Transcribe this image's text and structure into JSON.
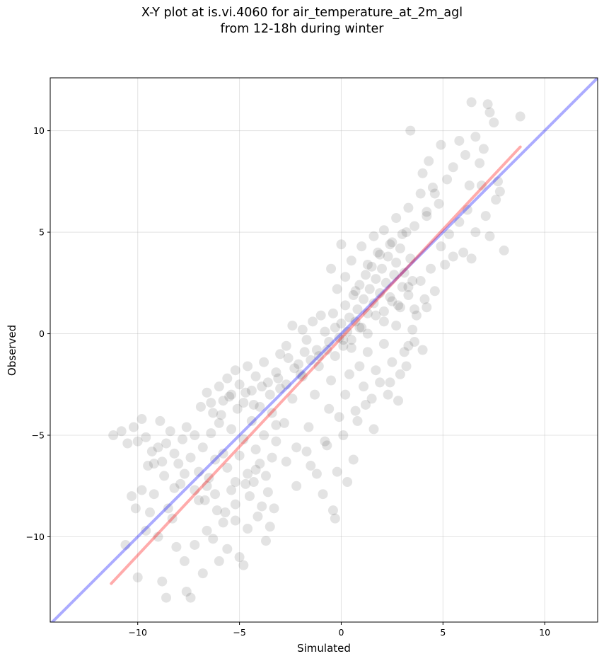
{
  "chart_data": {
    "type": "scatter",
    "title": "X-Y plot at is.vi.4060 for air_temperature_at_2m_agl",
    "subtitle": "from 12-18h during winter",
    "xlabel": "Simulated",
    "ylabel": "Observed",
    "xlim": [
      -14.3,
      12.6
    ],
    "ylim": [
      -14.2,
      12.6
    ],
    "xticks": [
      -10,
      -5,
      0,
      5,
      10
    ],
    "yticks": [
      -10,
      -5,
      0,
      5,
      10
    ],
    "xtick_labels": [
      "−10",
      "−5",
      "0",
      "5",
      "10"
    ],
    "ytick_labels": [
      "−10",
      "−5",
      "0",
      "5",
      "10"
    ],
    "grid": true,
    "colors": {
      "points": "#000000",
      "identity_line": "#0000ff",
      "fit_line": "#ff0000"
    },
    "identity_line": {
      "x": [
        -14.3,
        12.6
      ],
      "y": [
        -14.3,
        12.6
      ]
    },
    "fit_line": {
      "x": [
        -11.3,
        8.8
      ],
      "y": [
        -12.3,
        9.2
      ]
    },
    "points": [
      [
        -11.2,
        -5.0
      ],
      [
        -10.8,
        -4.8
      ],
      [
        -10.5,
        -5.4
      ],
      [
        -10.2,
        -4.6
      ],
      [
        -10.0,
        -5.3
      ],
      [
        -9.8,
        -4.2
      ],
      [
        -9.6,
        -5.1
      ],
      [
        -9.5,
        -6.5
      ],
      [
        -9.3,
        -5.8
      ],
      [
        -9.0,
        -5.6
      ],
      [
        -8.9,
        -4.3
      ],
      [
        -8.8,
        -6.3
      ],
      [
        -8.6,
        -5.4
      ],
      [
        -8.4,
        -4.8
      ],
      [
        -8.2,
        -5.9
      ],
      [
        -8.0,
        -6.4
      ],
      [
        -7.8,
        -5.2
      ],
      [
        -7.6,
        -4.6
      ],
      [
        -7.4,
        -6.1
      ],
      [
        -7.2,
        -5.0
      ],
      [
        -10.6,
        -10.4
      ],
      [
        -10.3,
        -8.0
      ],
      [
        -10.1,
        -8.6
      ],
      [
        -10.0,
        -12.0
      ],
      [
        -9.8,
        -7.7
      ],
      [
        -9.6,
        -9.7
      ],
      [
        -9.4,
        -8.8
      ],
      [
        -9.2,
        -7.9
      ],
      [
        -9.0,
        -10.0
      ],
      [
        -8.8,
        -12.2
      ],
      [
        -8.6,
        -13.0
      ],
      [
        -8.5,
        -8.6
      ],
      [
        -8.3,
        -9.1
      ],
      [
        -8.1,
        -10.5
      ],
      [
        -7.9,
        -7.4
      ],
      [
        -7.7,
        -11.2
      ],
      [
        -7.6,
        -12.7
      ],
      [
        -7.4,
        -13.0
      ],
      [
        -7.2,
        -10.4
      ],
      [
        -7.0,
        -8.2
      ],
      [
        -6.8,
        -11.8
      ],
      [
        -6.6,
        -9.7
      ],
      [
        -6.5,
        -7.1
      ],
      [
        -6.3,
        -10.1
      ],
      [
        -6.1,
        -8.7
      ],
      [
        -6.0,
        -11.2
      ],
      [
        -5.8,
        -9.3
      ],
      [
        -5.6,
        -10.6
      ],
      [
        -5.4,
        -7.7
      ],
      [
        -5.2,
        -8.4
      ],
      [
        -5.0,
        -11.0
      ],
      [
        -4.8,
        -11.4
      ],
      [
        -4.6,
        -9.6
      ],
      [
        -4.5,
        -8.0
      ],
      [
        -4.3,
        -7.3
      ],
      [
        -4.1,
        -9.0
      ],
      [
        -3.9,
        -8.5
      ],
      [
        -3.7,
        -10.2
      ],
      [
        -3.5,
        -9.5
      ],
      [
        -3.3,
        -8.6
      ],
      [
        -7.0,
        -6.8
      ],
      [
        -6.8,
        -5.6
      ],
      [
        -6.6,
        -7.5
      ],
      [
        -6.4,
        -4.9
      ],
      [
        -6.2,
        -6.2
      ],
      [
        -6.0,
        -4.4
      ],
      [
        -5.8,
        -5.9
      ],
      [
        -5.6,
        -6.6
      ],
      [
        -5.4,
        -4.7
      ],
      [
        -5.2,
        -7.3
      ],
      [
        -5.0,
        -6.0
      ],
      [
        -4.8,
        -5.2
      ],
      [
        -4.6,
        -6.9
      ],
      [
        -4.4,
        -4.3
      ],
      [
        -4.2,
        -5.7
      ],
      [
        -4.0,
        -6.4
      ],
      [
        -3.8,
        -5.0
      ],
      [
        -3.6,
        -7.8
      ],
      [
        -3.4,
        -6.1
      ],
      [
        -3.2,
        -4.5
      ],
      [
        -6.9,
        -3.6
      ],
      [
        -6.6,
        -2.9
      ],
      [
        -6.3,
        -3.9
      ],
      [
        -6.0,
        -2.6
      ],
      [
        -5.8,
        -3.3
      ],
      [
        -5.6,
        -2.2
      ],
      [
        -5.4,
        -3.0
      ],
      [
        -5.2,
        -1.8
      ],
      [
        -5.0,
        -2.5
      ],
      [
        -4.8,
        -3.4
      ],
      [
        -4.6,
        -1.6
      ],
      [
        -4.4,
        -2.8
      ],
      [
        -4.2,
        -2.1
      ],
      [
        -4.0,
        -3.6
      ],
      [
        -3.8,
        -1.4
      ],
      [
        -3.6,
        -2.4
      ],
      [
        -3.4,
        -3.9
      ],
      [
        -3.2,
        -1.9
      ],
      [
        -3.0,
        -2.7
      ],
      [
        -2.8,
        -4.4
      ],
      [
        -2.6,
        -1.2
      ],
      [
        -2.4,
        -3.2
      ],
      [
        -2.2,
        -5.6
      ],
      [
        -2.0,
        -2.0
      ],
      [
        -1.8,
        -0.9
      ],
      [
        -1.6,
        -4.6
      ],
      [
        -1.5,
        -6.5
      ],
      [
        -1.3,
        -3.0
      ],
      [
        -1.1,
        -1.1
      ],
      [
        -0.9,
        -7.9
      ],
      [
        -0.8,
        -5.3
      ],
      [
        -0.6,
        -3.7
      ],
      [
        -0.5,
        -2.3
      ],
      [
        -0.4,
        -8.7
      ],
      [
        -0.3,
        -9.1
      ],
      [
        -0.2,
        -6.8
      ],
      [
        -0.1,
        -4.1
      ],
      [
        0.1,
        -5.0
      ],
      [
        0.3,
        -7.3
      ],
      [
        0.6,
        -6.2
      ],
      [
        0.2,
        -3.0
      ],
      [
        0.4,
        -2.0
      ],
      [
        0.7,
        -3.8
      ],
      [
        0.9,
        -1.6
      ],
      [
        1.1,
        -2.6
      ],
      [
        1.3,
        -0.9
      ],
      [
        1.5,
        -3.2
      ],
      [
        1.7,
        -1.8
      ],
      [
        1.9,
        -2.4
      ],
      [
        2.1,
        -0.5
      ],
      [
        2.3,
        -3.0
      ],
      [
        2.5,
        -1.4
      ],
      [
        2.7,
        0.4
      ],
      [
        2.9,
        -2.0
      ],
      [
        3.1,
        -0.9
      ],
      [
        3.3,
        -0.6
      ],
      [
        3.5,
        0.2
      ],
      [
        3.7,
        0.9
      ],
      [
        4.0,
        -0.8
      ],
      [
        4.2,
        1.3
      ],
      [
        -3.0,
        -1.0
      ],
      [
        -2.7,
        -0.6
      ],
      [
        -2.4,
        0.4
      ],
      [
        -2.1,
        -1.5
      ],
      [
        -1.9,
        0.2
      ],
      [
        -1.7,
        -0.3
      ],
      [
        -1.4,
        0.6
      ],
      [
        -1.2,
        -0.8
      ],
      [
        -1.0,
        0.9
      ],
      [
        -0.8,
        0.1
      ],
      [
        -0.6,
        -0.4
      ],
      [
        -0.4,
        1.0
      ],
      [
        -0.3,
        0.3
      ],
      [
        -0.1,
        -0.2
      ],
      [
        0.0,
        0.5
      ],
      [
        0.1,
        -0.6
      ],
      [
        0.2,
        1.4
      ],
      [
        0.3,
        0.1
      ],
      [
        0.4,
        0.8
      ],
      [
        0.5,
        -0.3
      ],
      [
        0.6,
        1.9
      ],
      [
        0.7,
        0.6
      ],
      [
        0.8,
        1.2
      ],
      [
        0.9,
        2.4
      ],
      [
        1.0,
        0.3
      ],
      [
        1.1,
        1.7
      ],
      [
        1.2,
        2.9
      ],
      [
        1.3,
        1.0
      ],
      [
        1.4,
        2.2
      ],
      [
        1.5,
        3.3
      ],
      [
        1.6,
        1.5
      ],
      [
        1.7,
        2.7
      ],
      [
        1.8,
        4.0
      ],
      [
        1.9,
        2.0
      ],
      [
        2.0,
        3.2
      ],
      [
        2.1,
        1.1
      ],
      [
        2.2,
        2.5
      ],
      [
        2.3,
        3.8
      ],
      [
        2.4,
        1.8
      ],
      [
        2.5,
        4.5
      ],
      [
        2.6,
        2.9
      ],
      [
        2.7,
        3.5
      ],
      [
        2.8,
        1.4
      ],
      [
        2.9,
        4.2
      ],
      [
        3.0,
        2.3
      ],
      [
        3.1,
        3.0
      ],
      [
        3.2,
        5.0
      ],
      [
        3.3,
        1.9
      ],
      [
        3.4,
        3.7
      ],
      [
        3.5,
        2.6
      ],
      [
        -0.5,
        3.2
      ],
      [
        -0.2,
        2.2
      ],
      [
        0.0,
        4.4
      ],
      [
        0.2,
        2.8
      ],
      [
        0.5,
        3.6
      ],
      [
        0.7,
        2.1
      ],
      [
        1.0,
        4.3
      ],
      [
        1.3,
        3.4
      ],
      [
        1.6,
        4.8
      ],
      [
        1.9,
        3.9
      ],
      [
        2.1,
        5.1
      ],
      [
        2.4,
        4.4
      ],
      [
        2.7,
        5.7
      ],
      [
        3.0,
        4.9
      ],
      [
        3.3,
        6.2
      ],
      [
        3.6,
        5.3
      ],
      [
        3.9,
        6.9
      ],
      [
        4.2,
        5.8
      ],
      [
        4.5,
        7.2
      ],
      [
        4.8,
        6.4
      ],
      [
        3.6,
        1.2
      ],
      [
        3.9,
        2.6
      ],
      [
        4.1,
        1.7
      ],
      [
        4.4,
        3.2
      ],
      [
        4.6,
        2.1
      ],
      [
        4.9,
        4.3
      ],
      [
        5.1,
        3.4
      ],
      [
        5.3,
        4.9
      ],
      [
        5.5,
        3.8
      ],
      [
        5.8,
        5.5
      ],
      [
        6.0,
        4.0
      ],
      [
        6.2,
        6.1
      ],
      [
        6.4,
        3.7
      ],
      [
        6.6,
        5.0
      ],
      [
        6.9,
        7.3
      ],
      [
        7.1,
        5.8
      ],
      [
        7.3,
        4.8
      ],
      [
        7.6,
        6.6
      ],
      [
        7.8,
        7.0
      ],
      [
        8.0,
        4.1
      ],
      [
        4.0,
        7.9
      ],
      [
        4.3,
        8.5
      ],
      [
        4.6,
        6.9
      ],
      [
        4.9,
        9.3
      ],
      [
        5.2,
        7.6
      ],
      [
        5.5,
        8.2
      ],
      [
        5.8,
        9.5
      ],
      [
        6.1,
        8.8
      ],
      [
        6.3,
        7.3
      ],
      [
        6.6,
        9.7
      ],
      [
        6.8,
        8.4
      ],
      [
        7.0,
        9.1
      ],
      [
        7.2,
        11.3
      ],
      [
        7.3,
        10.9
      ],
      [
        7.5,
        10.4
      ],
      [
        7.7,
        7.5
      ],
      [
        8.8,
        10.7
      ],
      [
        3.4,
        10.0
      ],
      [
        6.4,
        11.4
      ],
      [
        4.2,
        6.0
      ],
      [
        -6.4,
        -3.4
      ],
      [
        -5.9,
        -4.0
      ],
      [
        -5.5,
        -3.1
      ],
      [
        -5.1,
        -3.7
      ],
      [
        -4.7,
        -2.9
      ],
      [
        -4.3,
        -3.5
      ],
      [
        -3.9,
        -2.6
      ],
      [
        -3.5,
        -3.0
      ],
      [
        -3.1,
        -2.2
      ],
      [
        -2.7,
        -2.5
      ],
      [
        -2.3,
        -1.7
      ],
      [
        -1.9,
        -2.1
      ],
      [
        -1.5,
        -1.3
      ],
      [
        -1.1,
        -1.6
      ],
      [
        -0.7,
        -0.8
      ],
      [
        -0.3,
        -1.1
      ],
      [
        0.1,
        -0.3
      ],
      [
        0.5,
        -0.7
      ],
      [
        0.9,
        0.3
      ],
      [
        1.3,
        0.0
      ],
      [
        1.7,
        0.9
      ],
      [
        2.1,
        0.6
      ],
      [
        2.5,
        1.6
      ],
      [
        2.9,
        1.3
      ],
      [
        3.3,
        2.3
      ],
      [
        -9.2,
        -6.4
      ],
      [
        -8.7,
        -7.0
      ],
      [
        -8.2,
        -7.6
      ],
      [
        -7.7,
        -6.9
      ],
      [
        -7.2,
        -7.7
      ],
      [
        -6.7,
        -8.2
      ],
      [
        -6.2,
        -7.9
      ],
      [
        -5.7,
        -8.8
      ],
      [
        -5.2,
        -9.2
      ],
      [
        -4.7,
        -7.4
      ],
      [
        -4.2,
        -6.7
      ],
      [
        -3.7,
        -7.0
      ],
      [
        -3.2,
        -5.3
      ],
      [
        -2.7,
        -6.3
      ],
      [
        -2.2,
        -7.5
      ],
      [
        -1.7,
        -5.8
      ],
      [
        -1.2,
        -6.9
      ],
      [
        -0.7,
        -5.5
      ],
      [
        0.8,
        -4.3
      ],
      [
        1.2,
        -3.5
      ],
      [
        1.6,
        -4.7
      ],
      [
        2.4,
        -2.4
      ],
      [
        2.8,
        -3.3
      ],
      [
        3.2,
        -1.6
      ],
      [
        3.6,
        -0.4
      ]
    ]
  }
}
